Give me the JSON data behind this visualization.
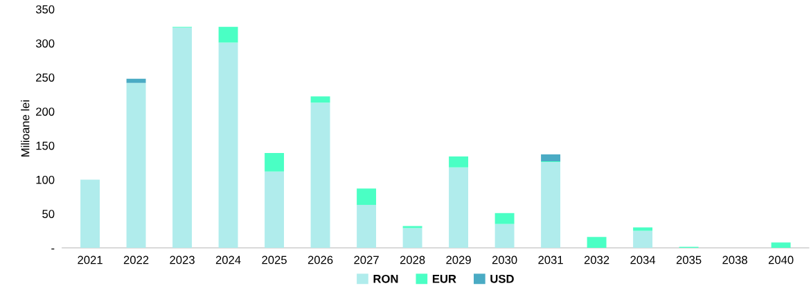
{
  "chart_data": {
    "type": "bar",
    "stacked": true,
    "ylabel": "Milioane lei",
    "categories": [
      "2021",
      "2022",
      "2023",
      "2024",
      "2025",
      "2026",
      "2027",
      "2028",
      "2029",
      "2030",
      "2031",
      "2032",
      "2034",
      "2035",
      "2038",
      "2040"
    ],
    "series": [
      {
        "name": "RON",
        "color": "#b0ecec",
        "values": [
          100,
          242,
          323,
          301,
          112,
          213,
          63,
          29,
          118,
          35,
          126,
          0,
          25,
          0,
          0,
          0
        ]
      },
      {
        "name": "EUR",
        "color": "#4affc4",
        "values": [
          0,
          0,
          1,
          23,
          27,
          9,
          24,
          3,
          16,
          16,
          1,
          16,
          5,
          1.5,
          null,
          8
        ]
      },
      {
        "name": "USD",
        "color": "#4aabc4",
        "values": [
          0,
          6,
          0,
          0,
          0,
          0,
          0,
          0,
          0,
          0,
          10,
          0,
          0,
          0,
          0,
          0
        ]
      }
    ],
    "ylim": [
      0,
      350
    ],
    "yticks": [
      {
        "value": 0,
        "label": "-"
      },
      50,
      100,
      150,
      200,
      250,
      300,
      350
    ],
    "grid": false,
    "legend": "bottom"
  }
}
